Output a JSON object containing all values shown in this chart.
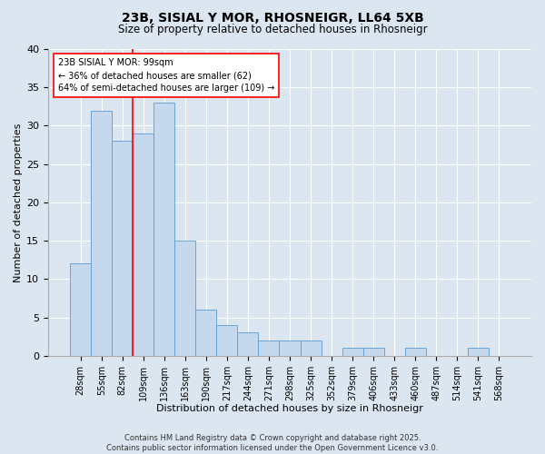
{
  "title": "23B, SISIAL Y MOR, RHOSNEIGR, LL64 5XB",
  "subtitle": "Size of property relative to detached houses in Rhosneigr",
  "xlabel": "Distribution of detached houses by size in Rhosneigr",
  "ylabel": "Number of detached properties",
  "footer_line1": "Contains HM Land Registry data © Crown copyright and database right 2025.",
  "footer_line2": "Contains public sector information licensed under the Open Government Licence v3.0.",
  "annotation_title": "23B SISIAL Y MOR: 99sqm",
  "annotation_line1": "← 36% of detached houses are smaller (62)",
  "annotation_line2": "64% of semi-detached houses are larger (109) →",
  "categories": [
    "28sqm",
    "55sqm",
    "82sqm",
    "109sqm",
    "136sqm",
    "163sqm",
    "190sqm",
    "217sqm",
    "244sqm",
    "271sqm",
    "298sqm",
    "325sqm",
    "352sqm",
    "379sqm",
    "406sqm",
    "433sqm",
    "460sqm",
    "487sqm",
    "514sqm",
    "541sqm",
    "568sqm"
  ],
  "values": [
    12,
    32,
    28,
    29,
    33,
    15,
    6,
    4,
    3,
    2,
    2,
    2,
    0,
    1,
    1,
    0,
    1,
    0,
    0,
    1,
    0
  ],
  "bar_color": "#c5d8ed",
  "bar_edge_color": "#5b9bd5",
  "background_color": "#dce6f1",
  "plot_bg_color": "#dce6f1",
  "grid_color": "#ffffff",
  "red_line_x": 2.5,
  "ylim": [
    0,
    40
  ],
  "yticks": [
    0,
    5,
    10,
    15,
    20,
    25,
    30,
    35,
    40
  ],
  "title_fontsize": 10,
  "subtitle_fontsize": 8.5,
  "tick_fontsize": 7,
  "label_fontsize": 8,
  "footer_fontsize": 6,
  "annotation_fontsize": 7
}
